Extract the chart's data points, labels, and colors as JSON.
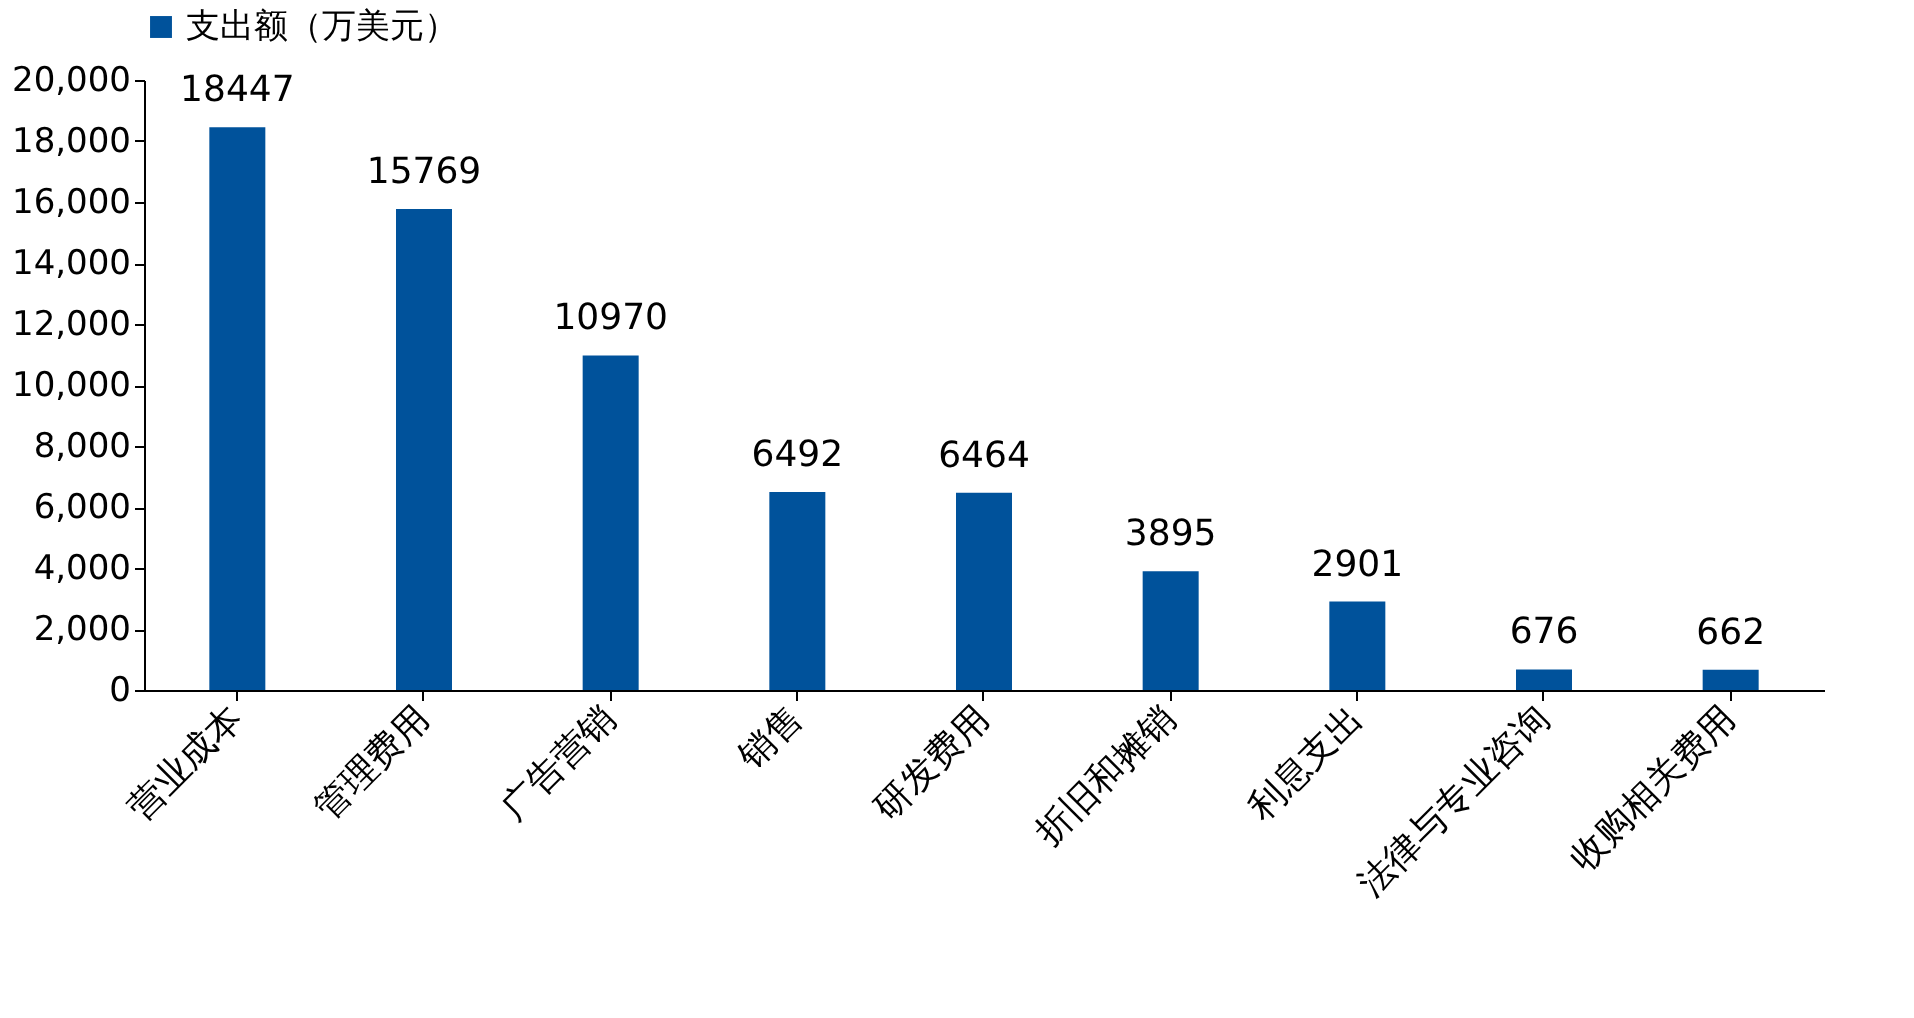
{
  "chart_data": {
    "type": "bar",
    "categories": [
      "营业成本",
      "管理费用",
      "广告营销",
      "销售",
      "研发费用",
      "折旧和摊销",
      "利息支出",
      "法律与专业咨询",
      "收购相关费用"
    ],
    "series": [
      {
        "name": "支出额（万美元）",
        "color": "#00529b",
        "values": [
          18447,
          15769,
          10970,
          6492,
          6464,
          3895,
          2901,
          676,
          662
        ]
      }
    ],
    "ylim": [
      0,
      20000
    ],
    "yticks": [
      {
        "value": 0,
        "label": "0"
      },
      {
        "value": 2000,
        "label": "2,000"
      },
      {
        "value": 4000,
        "label": "4,000"
      },
      {
        "value": 6000,
        "label": "6,000"
      },
      {
        "value": 8000,
        "label": "8,000"
      },
      {
        "value": 10000,
        "label": "10,000"
      },
      {
        "value": 12000,
        "label": "12,000"
      },
      {
        "value": 14000,
        "label": "14,000"
      },
      {
        "value": 16000,
        "label": "16,000"
      },
      {
        "value": 18000,
        "label": "18,000"
      },
      {
        "value": 20000,
        "label": "20,000"
      }
    ],
    "data_labels": true,
    "legend": "top",
    "grid": false
  }
}
